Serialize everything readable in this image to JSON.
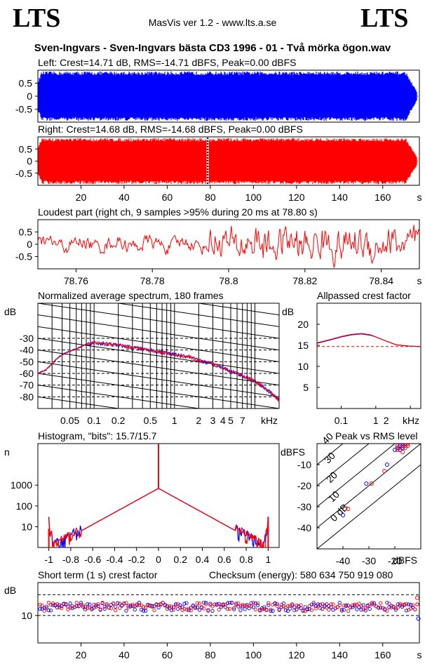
{
  "header": {
    "logo_left": "LTS",
    "logo_right": "LTS",
    "version": "MasVis ver 1.2 - www.lts.a.se",
    "file_title": "Sven-Ingvars - Sven-Ingvars bästa CD3 1996 - 01 - Två mörka  ögon.wav"
  },
  "colors": {
    "left": "#0000ff",
    "right": "#ff0000",
    "axis": "#000000"
  },
  "chart_data": [
    {
      "id": "left_waveform",
      "type": "area",
      "title": "Left: Crest=14.71 dB, RMS=-14.71 dBFS, Peak=0.00 dBFS",
      "ylim": [
        -1,
        1
      ],
      "yticks": [
        "0.5",
        "0",
        "-0.5"
      ],
      "ytick_values": [
        0.5,
        0,
        -0.5
      ],
      "xlim": [
        0,
        177
      ],
      "end_time_s": 176,
      "series": [
        {
          "name": "",
          "values": [
            0.95,
            -0.95
          ]
        }
      ]
    },
    {
      "id": "right_waveform",
      "type": "area",
      "title": "Right: Crest=14.68 dB, RMS=-14.68 dBFS, Peak=0.00 dBFS",
      "ylim": [
        -1,
        1
      ],
      "yticks": [
        "0.5",
        "0",
        "-0.5"
      ],
      "ytick_values": [
        0.5,
        0,
        -0.5
      ],
      "xlim": [
        0,
        177
      ],
      "xticks": [
        "20",
        "40",
        "60",
        "80",
        "100",
        "120",
        "140",
        "160"
      ],
      "xtick_values": [
        20,
        40,
        60,
        80,
        100,
        120,
        140,
        160
      ],
      "xunit": "s",
      "marker_s": 78.8,
      "end_time_s": 176,
      "series": [
        {
          "name": "",
          "values": [
            0.95,
            -0.95
          ]
        }
      ]
    },
    {
      "id": "loudest_part",
      "type": "line",
      "title": "Loudest part (right ch, 9 samples >95% during 20 ms at 78.80 s)",
      "ylim": [
        -1,
        1
      ],
      "yticks": [
        "0.5",
        "0",
        "-0.5"
      ],
      "ytick_values": [
        0.5,
        0,
        -0.5
      ],
      "xlim": [
        78.75,
        78.85
      ],
      "xticks": [
        "78.76",
        "78.78",
        "78.8",
        "78.82",
        "78.84"
      ],
      "xtick_values": [
        78.76,
        78.78,
        78.8,
        78.82,
        78.84
      ],
      "xunit": "s"
    },
    {
      "id": "spectrum",
      "type": "line",
      "title": "Normalized average spectrum, 180 frames",
      "ylabel": "dB",
      "ylim": [
        -90,
        0
      ],
      "yticks": [
        "-30",
        "-40",
        "-50",
        "-60",
        "-70",
        "-80"
      ],
      "ytick_values": [
        -30,
        -40,
        -50,
        -60,
        -70,
        -80
      ],
      "xscale": "log",
      "xlim": [
        0.02,
        20
      ],
      "xticks": [
        "0.05",
        "0.1",
        "0.2",
        "0.5",
        "1",
        "2",
        "3",
        "4",
        "5",
        "7"
      ],
      "xtick_values": [
        0.05,
        0.1,
        0.2,
        0.5,
        1,
        2,
        3,
        4,
        5,
        7
      ],
      "xunit": "kHz",
      "points": [
        [
          0.02,
          -60
        ],
        [
          0.025,
          -57
        ],
        [
          0.03,
          -52
        ],
        [
          0.035,
          -47
        ],
        [
          0.04,
          -44
        ],
        [
          0.05,
          -41
        ],
        [
          0.06,
          -39
        ],
        [
          0.07,
          -37
        ],
        [
          0.08,
          -35
        ],
        [
          0.1,
          -34
        ],
        [
          0.15,
          -35
        ],
        [
          0.2,
          -36
        ],
        [
          0.3,
          -38
        ],
        [
          0.5,
          -40
        ],
        [
          0.7,
          -42
        ],
        [
          1,
          -44
        ],
        [
          1.5,
          -46
        ],
        [
          2,
          -49
        ],
        [
          3,
          -52
        ],
        [
          4,
          -55
        ],
        [
          5,
          -58
        ],
        [
          6,
          -60
        ],
        [
          7,
          -62
        ],
        [
          8,
          -64
        ],
        [
          10,
          -67
        ],
        [
          12,
          -70
        ],
        [
          14,
          -74
        ],
        [
          16,
          -77
        ],
        [
          18,
          -80
        ],
        [
          20,
          -83
        ]
      ]
    },
    {
      "id": "allpassed_crest",
      "type": "line",
      "title": "Allpassed crest factor",
      "ylabel": "dB",
      "ylim": [
        0,
        25
      ],
      "yticks": [
        "20",
        "15",
        "10",
        "5"
      ],
      "ytick_values": [
        20,
        15,
        10,
        5
      ],
      "xscale": "log",
      "xlim": [
        0.02,
        20
      ],
      "xticks": [
        "0.1",
        "1",
        "2"
      ],
      "xtick_values": [
        0.1,
        1,
        2
      ],
      "xunit": "kHz",
      "reference_db": 14.7,
      "series": [
        {
          "name": "",
          "points": [
            [
              0.02,
              15.5
            ],
            [
              0.05,
              16.3
            ],
            [
              0.1,
              17.0
            ],
            [
              0.2,
              17.5
            ],
            [
              0.4,
              17.7
            ],
            [
              0.7,
              17.4
            ],
            [
              1,
              17.0
            ],
            [
              2,
              16.0
            ],
            [
              4,
              15.1
            ],
            [
              10,
              14.8
            ],
            [
              20,
              14.7
            ]
          ]
        },
        {
          "name": "",
          "points": [
            [
              0.02,
              15.6
            ],
            [
              0.05,
              16.4
            ],
            [
              0.1,
              17.1
            ],
            [
              0.2,
              17.6
            ],
            [
              0.4,
              17.8
            ],
            [
              0.7,
              17.5
            ],
            [
              1,
              17.0
            ],
            [
              2,
              16.0
            ],
            [
              4,
              15.1
            ],
            [
              10,
              14.8
            ],
            [
              20,
              14.7
            ]
          ]
        }
      ]
    },
    {
      "id": "histogram",
      "type": "line",
      "title": "Histogram, \"bits\": 15.7/15.7",
      "ylabel": "n",
      "yscale": "log",
      "ylim": [
        1,
        100000
      ],
      "yticks": [
        "1000",
        "100",
        "10"
      ],
      "ytick_values": [
        1000,
        100,
        10
      ],
      "xlim": [
        -1.1,
        1.1
      ],
      "xticks": [
        "-1",
        "-0.8",
        "-0.6",
        "-0.4",
        "-0.2",
        "0",
        "0.2",
        "0.4",
        "0.6",
        "0.8",
        "1"
      ],
      "xtick_values": [
        -1,
        -0.8,
        -0.6,
        -0.4,
        -0.2,
        0,
        0.2,
        0.4,
        0.6,
        0.8,
        1
      ],
      "center_spike": 100000,
      "center_value": 700
    },
    {
      "id": "peak_vs_rms",
      "type": "scatter",
      "title": "Peak vs RMS level",
      "ylabel": "dBFS",
      "xlabel": "dBFS",
      "xlim": [
        -50,
        -10
      ],
      "ylim": [
        -50,
        0
      ],
      "xticks": [
        "-40",
        "-30",
        "-20"
      ],
      "xtick_values": [
        -40,
        -30,
        -20
      ],
      "yticks": [
        "-10",
        "-20",
        "-30",
        "-40"
      ],
      "ytick_values": [
        -10,
        -20,
        -30,
        -40
      ],
      "diagonal_labels": [
        "40",
        "30",
        "20",
        "10",
        "0 dB"
      ],
      "diagonal_offsets": [
        40,
        30,
        20,
        10,
        0
      ],
      "series": [
        {
          "name": "",
          "points": [
            [
              -40,
              -34
            ],
            [
              -31,
              -19
            ],
            [
              -23,
              -10
            ],
            [
              -20,
              -3
            ],
            [
              -19,
              -2
            ],
            [
              -18,
              -1
            ],
            [
              -17,
              -1
            ],
            [
              -16,
              0
            ],
            [
              -18,
              -3
            ],
            [
              -17,
              -2
            ]
          ]
        },
        {
          "name": "",
          "points": [
            [
              -38,
              -31
            ],
            [
              -29,
              -19
            ],
            [
              -24,
              -13
            ],
            [
              -19,
              -1
            ],
            [
              -18,
              -2
            ],
            [
              -17,
              0
            ],
            [
              -16,
              -1
            ],
            [
              -15,
              0
            ],
            [
              -19,
              -3
            ],
            [
              -17,
              -4
            ],
            [
              -16,
              -2
            ],
            [
              -15,
              -1
            ]
          ]
        }
      ]
    },
    {
      "id": "short_term_crest",
      "type": "scatter",
      "title": "Short term (1 s) crest factor",
      "checksum": "Checksum (energy):   580 634 750 919 080",
      "ylabel": "dB",
      "yscale": "log",
      "ylim": [
        4,
        30
      ],
      "yticks": [
        "10"
      ],
      "ytick_values": [
        10
      ],
      "ref_lines": [
        10,
        20
      ],
      "xlim": [
        0,
        177
      ],
      "xticks": [
        "20",
        "40",
        "60",
        "80",
        "100",
        "120",
        "140",
        "160"
      ],
      "xtick_values": [
        20,
        40,
        60,
        80,
        100,
        120,
        140,
        160
      ],
      "xunit": "s",
      "end_time_s": 176,
      "mean_db": 13.5,
      "last_point_db": 18
    }
  ]
}
